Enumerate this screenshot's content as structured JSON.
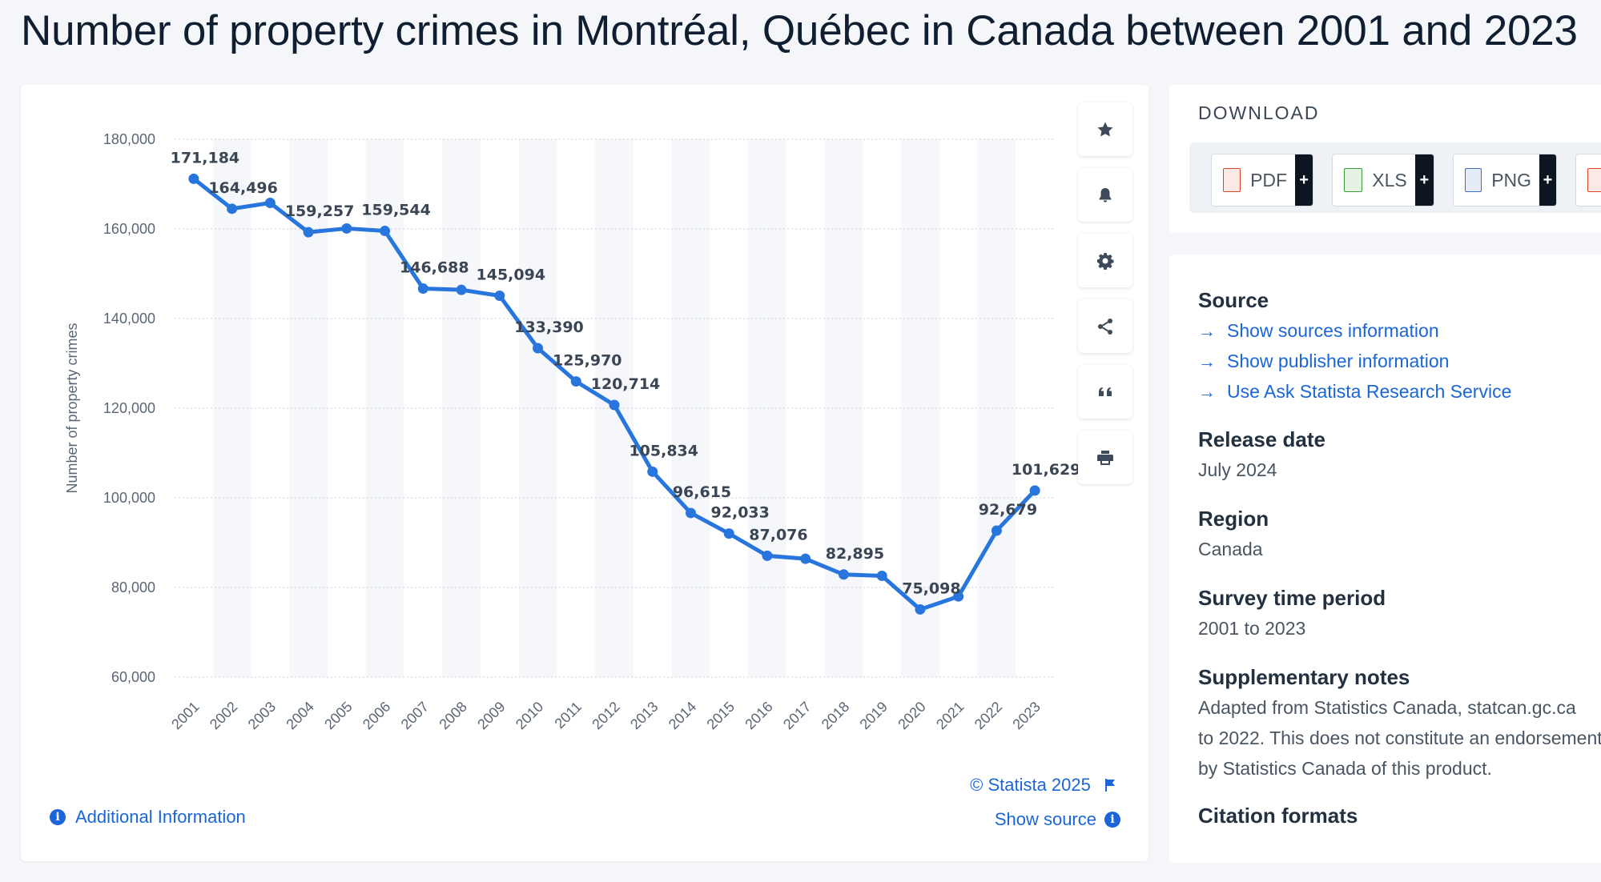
{
  "title": "Number of property crimes in Montréal, Québec in Canada between 2001 and 2023",
  "toolbar": [
    {
      "name": "star-icon"
    },
    {
      "name": "bell-icon"
    },
    {
      "name": "gear-icon"
    },
    {
      "name": "share-icon"
    },
    {
      "name": "quote-icon"
    },
    {
      "name": "print-icon"
    }
  ],
  "chart_data": {
    "type": "line",
    "x": [
      "2001",
      "2002",
      "2003",
      "2004",
      "2005",
      "2006",
      "2007",
      "2008",
      "2009",
      "2010",
      "2011",
      "2012",
      "2013",
      "2014",
      "2015",
      "2016",
      "2017",
      "2018",
      "2019",
      "2020",
      "2021",
      "2022",
      "2023"
    ],
    "series": [
      {
        "values": [
          171184,
          164496,
          165800,
          159257,
          160100,
          159544,
          146688,
          146400,
          145094,
          133390,
          125970,
          120714,
          105834,
          96615,
          92033,
          87076,
          86400,
          82895,
          82600,
          75098,
          78000,
          92679,
          101629
        ],
        "labels": [
          "171,184",
          "164,496",
          "",
          "159,257",
          "",
          "159,544",
          "146,688",
          "",
          "145,094",
          "133,390",
          "125,970",
          "120,714",
          "105,834",
          "96,615",
          "92,033",
          "87,076",
          "",
          "82,895",
          "",
          "75,098",
          "",
          "92,679",
          "101,629"
        ]
      }
    ],
    "xlabel": "",
    "ylabel": "Number of property crimes",
    "ylim": [
      60000,
      180000
    ],
    "yticks": [
      60000,
      80000,
      100000,
      120000,
      140000,
      160000,
      180000
    ],
    "ytick_labels": [
      "60,000",
      "80,000",
      "100,000",
      "120,000",
      "140,000",
      "160,000",
      "180,000"
    ],
    "line_color": "#2876dd",
    "grid": true,
    "legend": "none"
  },
  "footer": {
    "copyright": "© Statista 2025",
    "show_source": "Show source",
    "additional_info": "Additional Information"
  },
  "download": {
    "title": "DOWNLOAD",
    "buttons": [
      {
        "label": "PDF",
        "plus": "+",
        "color": "#d9482b"
      },
      {
        "label": "XLS",
        "plus": "+",
        "color": "#3d9a3a"
      },
      {
        "label": "PNG",
        "plus": "+",
        "color": "#3d6fb4"
      }
    ]
  },
  "info": {
    "source_heading": "Source",
    "source_links": [
      "Show sources information",
      "Show publisher information",
      "Use Ask Statista Research Service"
    ],
    "release_heading": "Release date",
    "release_value": "July 2024",
    "region_heading": "Region",
    "region_value": "Canada",
    "survey_heading": "Survey time period",
    "survey_value": "2001 to 2023",
    "notes_heading": "Supplementary notes",
    "notes_lines": [
      "Adapted from Statistics Canada, statcan.gc.ca",
      "to 2022. This does not constitute an endorsement",
      "by Statistics Canada of this product."
    ],
    "citation_heading": "Citation formats"
  }
}
